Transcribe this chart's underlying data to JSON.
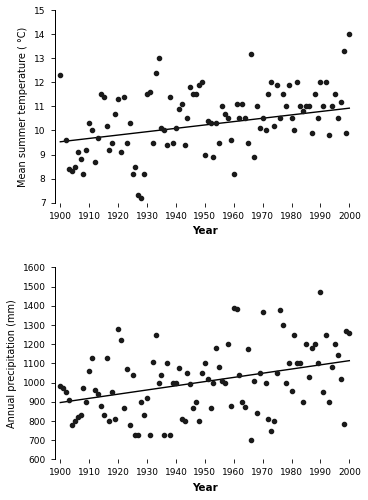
{
  "temp_years": [
    1900,
    1902,
    1903,
    1904,
    1905,
    1906,
    1907,
    1908,
    1909,
    1910,
    1911,
    1912,
    1913,
    1914,
    1915,
    1916,
    1917,
    1918,
    1919,
    1920,
    1921,
    1922,
    1923,
    1924,
    1925,
    1926,
    1927,
    1928,
    1929,
    1930,
    1931,
    1932,
    1933,
    1934,
    1935,
    1936,
    1937,
    1938,
    1939,
    1940,
    1941,
    1942,
    1943,
    1944,
    1945,
    1946,
    1947,
    1948,
    1949,
    1950,
    1951,
    1952,
    1953,
    1954,
    1955,
    1956,
    1957,
    1958,
    1959,
    1960,
    1961,
    1962,
    1963,
    1964,
    1965,
    1966,
    1967,
    1968,
    1969,
    1970,
    1971,
    1972,
    1973,
    1974,
    1975,
    1976,
    1977,
    1978,
    1979,
    1980,
    1981,
    1982,
    1983,
    1984,
    1985,
    1986,
    1987,
    1988,
    1989,
    1990,
    1991,
    1992,
    1993,
    1994,
    1995,
    1996,
    1997,
    1998,
    1999,
    2000
  ],
  "temp_values": [
    12.3,
    9.6,
    8.4,
    8.3,
    8.5,
    9.1,
    8.8,
    8.2,
    9.2,
    10.3,
    10.0,
    8.7,
    9.7,
    11.5,
    11.4,
    10.2,
    9.2,
    9.5,
    10.7,
    11.3,
    9.1,
    11.4,
    9.5,
    10.3,
    8.2,
    8.5,
    7.3,
    7.2,
    8.2,
    11.5,
    11.6,
    9.5,
    12.4,
    13.0,
    10.1,
    10.0,
    9.4,
    11.4,
    9.5,
    10.1,
    10.9,
    11.1,
    9.4,
    10.5,
    11.8,
    11.5,
    11.5,
    11.9,
    12.0,
    9.0,
    10.4,
    10.3,
    8.9,
    10.3,
    9.5,
    11.0,
    10.7,
    10.5,
    9.6,
    8.2,
    11.1,
    10.5,
    11.1,
    10.5,
    9.5,
    13.2,
    8.9,
    11.0,
    10.1,
    10.5,
    10.0,
    11.5,
    12.0,
    10.2,
    11.9,
    10.5,
    11.5,
    11.0,
    11.9,
    10.5,
    10.0,
    12.0,
    11.0,
    10.8,
    11.0,
    11.0,
    9.9,
    11.5,
    10.5,
    12.0,
    11.0,
    12.0,
    9.8,
    11.0,
    11.5,
    10.5,
    11.2,
    13.3,
    9.9,
    14.0
  ],
  "precip_years": [
    1900,
    1901,
    1902,
    1903,
    1904,
    1905,
    1906,
    1907,
    1908,
    1909,
    1910,
    1911,
    1912,
    1913,
    1914,
    1915,
    1916,
    1917,
    1918,
    1919,
    1920,
    1921,
    1922,
    1923,
    1924,
    1925,
    1926,
    1927,
    1928,
    1929,
    1930,
    1931,
    1932,
    1933,
    1934,
    1935,
    1936,
    1937,
    1938,
    1939,
    1940,
    1941,
    1942,
    1943,
    1944,
    1945,
    1946,
    1947,
    1948,
    1949,
    1950,
    1951,
    1952,
    1953,
    1954,
    1955,
    1956,
    1957,
    1958,
    1959,
    1960,
    1961,
    1962,
    1963,
    1964,
    1965,
    1966,
    1967,
    1968,
    1969,
    1970,
    1971,
    1972,
    1973,
    1974,
    1975,
    1976,
    1977,
    1978,
    1979,
    1980,
    1981,
    1982,
    1983,
    1984,
    1985,
    1986,
    1987,
    1988,
    1989,
    1990,
    1991,
    1992,
    1993,
    1994,
    1995,
    1996,
    1997,
    1998,
    1999,
    2000
  ],
  "precip_values": [
    980,
    970,
    950,
    910,
    780,
    800,
    820,
    830,
    970,
    900,
    1060,
    1130,
    960,
    940,
    880,
    830,
    1130,
    800,
    950,
    810,
    1280,
    1220,
    870,
    1070,
    780,
    1040,
    725,
    730,
    900,
    830,
    920,
    730,
    1110,
    1250,
    1000,
    1040,
    730,
    1100,
    730,
    1000,
    1000,
    1075,
    810,
    800,
    1050,
    995,
    870,
    900,
    800,
    1050,
    1100,
    1020,
    870,
    1000,
    1180,
    1080,
    1010,
    1000,
    1200,
    880,
    1390,
    1385,
    1040,
    900,
    875,
    1175,
    700,
    1010,
    840,
    1050,
    1370,
    1000,
    810,
    750,
    800,
    1050,
    1380,
    1300,
    1000,
    1100,
    955,
    1250,
    1100,
    1100,
    900,
    1200,
    1030,
    1180,
    1200,
    1100,
    1470,
    950,
    1250,
    900,
    1080,
    1200,
    1145,
    1020,
    785,
    1270,
    1260
  ],
  "temp_slope": 0.014,
  "temp_intercept": 9.53,
  "precip_slope": 2.18,
  "precip_intercept": 896.4,
  "temp_ylim": [
    7,
    15
  ],
  "temp_yticks": [
    7,
    8,
    9,
    10,
    11,
    12,
    13,
    14,
    15
  ],
  "temp_ylabel": "Mean summer temperature ( °C)",
  "precip_ylim": [
    600,
    1600
  ],
  "precip_yticks": [
    600,
    700,
    800,
    900,
    1000,
    1100,
    1200,
    1300,
    1400,
    1500,
    1600
  ],
  "precip_ylabel": "Annual precipitation (mm)",
  "xlabel": "Year",
  "xlim": [
    1898,
    2002
  ],
  "xticks": [
    1900,
    1910,
    1920,
    1930,
    1940,
    1950,
    1960,
    1970,
    1980,
    1990,
    2000
  ],
  "dot_color": "#1a1a1a",
  "line_color": "#000000",
  "dot_size": 9,
  "background_color": "#ffffff"
}
